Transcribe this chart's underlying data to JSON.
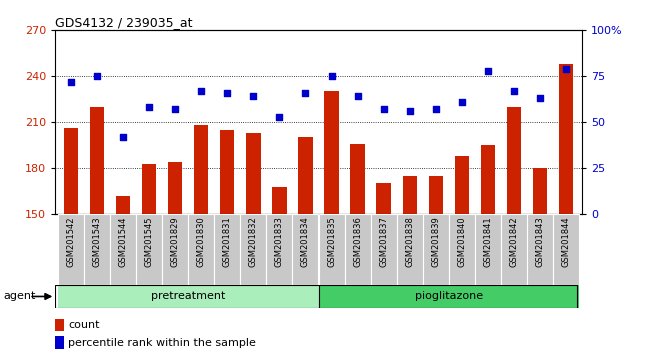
{
  "title": "GDS4132 / 239035_at",
  "categories": [
    "GSM201542",
    "GSM201543",
    "GSM201544",
    "GSM201545",
    "GSM201829",
    "GSM201830",
    "GSM201831",
    "GSM201832",
    "GSM201833",
    "GSM201834",
    "GSM201835",
    "GSM201836",
    "GSM201837",
    "GSM201838",
    "GSM201839",
    "GSM201840",
    "GSM201841",
    "GSM201842",
    "GSM201843",
    "GSM201844"
  ],
  "bar_values": [
    206,
    220,
    162,
    183,
    184,
    208,
    205,
    203,
    168,
    200,
    230,
    196,
    170,
    175,
    175,
    188,
    195,
    220,
    180,
    248
  ],
  "dot_values_pct": [
    72,
    75,
    42,
    58,
    57,
    67,
    66,
    64,
    53,
    66,
    75,
    64,
    57,
    56,
    57,
    61,
    78,
    67,
    63,
    79
  ],
  "bar_color": "#cc2200",
  "dot_color": "#0000cc",
  "ylim_left": [
    150,
    270
  ],
  "ylim_right": [
    0,
    100
  ],
  "yticks_left": [
    150,
    180,
    210,
    240,
    270
  ],
  "yticks_right": [
    0,
    25,
    50,
    75,
    100
  ],
  "ytick_labels_right": [
    "0",
    "25",
    "50",
    "75",
    "100%"
  ],
  "pretreatment_samples": 10,
  "pioglitazone_samples": 10,
  "pretreatment_label": "pretreatment",
  "pioglitazone_label": "pioglitazone",
  "agent_label": "agent",
  "legend_count": "count",
  "legend_pct": "percentile rank within the sample",
  "bg_xtick": "#c8c8c8",
  "bg_agent_pre": "#aaeebb",
  "bg_agent_pio": "#44cc66",
  "bar_width": 0.55
}
